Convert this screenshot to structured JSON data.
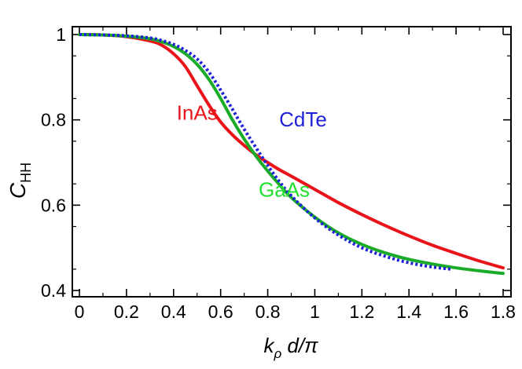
{
  "chart_data": {
    "type": "line",
    "title": "",
    "xlabel": {
      "main": "k",
      "sub": "ρ",
      "rest": " d/π"
    },
    "ylabel": {
      "main": "C",
      "sub": "HH"
    },
    "xlim": [
      0,
      1.8
    ],
    "ylim": [
      0.4,
      1.0
    ],
    "xticks": [
      0,
      0.2,
      0.4,
      0.6,
      0.8,
      1.0,
      1.2,
      1.4,
      1.6,
      1.8
    ],
    "xtick_labels": [
      "0",
      "0.2",
      "0.4",
      "0.6",
      "0.8",
      "1",
      "1.2",
      "1.4",
      "1.6",
      "1.8"
    ],
    "yticks": [
      0.4,
      0.6,
      0.8,
      1.0
    ],
    "ytick_labels": [
      "0.4",
      "0.6",
      "0.8",
      "1"
    ],
    "grid": false,
    "legend": "none",
    "series": [
      {
        "name": "InAs",
        "color": "#e8141a",
        "style": "solid",
        "x": [
          0,
          0.1,
          0.2,
          0.3,
          0.35,
          0.4,
          0.45,
          0.5,
          0.55,
          0.6,
          0.65,
          0.7,
          0.75,
          0.8,
          0.85,
          0.9,
          1.0,
          1.1,
          1.2,
          1.3,
          1.4,
          1.5,
          1.6,
          1.7,
          1.8
        ],
        "y": [
          1.0,
          0.999,
          0.995,
          0.985,
          0.975,
          0.955,
          0.925,
          0.88,
          0.835,
          0.795,
          0.765,
          0.74,
          0.718,
          0.7,
          0.683,
          0.668,
          0.637,
          0.606,
          0.578,
          0.552,
          0.528,
          0.506,
          0.487,
          0.469,
          0.453
        ]
      },
      {
        "name": "GaAs",
        "color": "#1aab28",
        "style": "solid",
        "x": [
          0,
          0.1,
          0.2,
          0.3,
          0.35,
          0.4,
          0.45,
          0.5,
          0.55,
          0.6,
          0.65,
          0.7,
          0.75,
          0.8,
          0.85,
          0.9,
          1.0,
          1.1,
          1.2,
          1.3,
          1.4,
          1.5,
          1.6,
          1.7,
          1.8
        ],
        "y": [
          1.0,
          0.999,
          0.996,
          0.99,
          0.983,
          0.972,
          0.955,
          0.93,
          0.895,
          0.85,
          0.8,
          0.755,
          0.715,
          0.68,
          0.648,
          0.618,
          0.572,
          0.535,
          0.508,
          0.488,
          0.473,
          0.462,
          0.453,
          0.446,
          0.44
        ]
      },
      {
        "name": "CdTe",
        "color": "#1f22d6",
        "style": "dotted",
        "x": [
          0,
          0.1,
          0.2,
          0.3,
          0.35,
          0.4,
          0.45,
          0.5,
          0.55,
          0.6,
          0.65,
          0.7,
          0.75,
          0.8,
          0.85,
          0.9,
          1.0,
          1.1,
          1.2,
          1.3,
          1.4,
          1.5,
          1.58
        ],
        "y": [
          1.0,
          0.999,
          0.997,
          0.992,
          0.986,
          0.977,
          0.963,
          0.943,
          0.912,
          0.87,
          0.825,
          0.778,
          0.735,
          0.693,
          0.655,
          0.622,
          0.57,
          0.53,
          0.5,
          0.48,
          0.465,
          0.455,
          0.45
        ]
      }
    ],
    "annotations": [
      {
        "text": "InAs",
        "series": "InAs",
        "x": 0.5,
        "y": 0.8
      },
      {
        "text": "CdTe",
        "series": "CdTe",
        "x": 0.95,
        "y": 0.785
      },
      {
        "text": "GaAs",
        "series": "GaAs",
        "x": 0.87,
        "y": 0.62
      }
    ]
  }
}
